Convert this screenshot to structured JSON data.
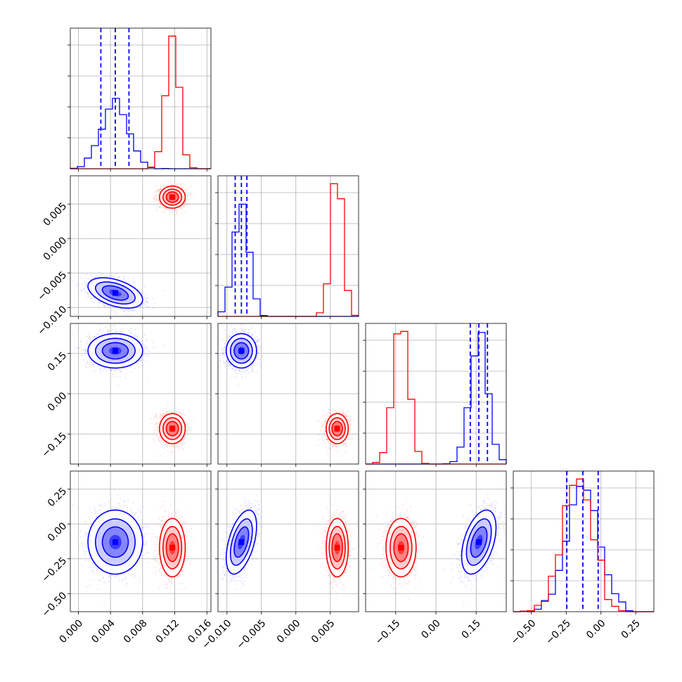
{
  "chart_data": {
    "type": "corner",
    "title": "",
    "grid": true,
    "colors": {
      "blue": "#0000ff",
      "red": "#ff0000"
    },
    "parameters": [
      {
        "range": [
          -0.001,
          0.0165
        ],
        "ticks": [
          "0.000",
          "0.004",
          "0.008",
          "0.012",
          "0.016"
        ],
        "tick_values": [
          0.0,
          0.004,
          0.008,
          0.012,
          0.016
        ]
      },
      {
        "range": [
          -0.0113,
          0.0091
        ],
        "ticks": [
          "−0.010",
          "−0.005",
          "0.000",
          "0.005"
        ],
        "tick_values": [
          -0.01,
          -0.005,
          0.0,
          0.005
        ]
      },
      {
        "range": [
          -0.262,
          0.262
        ],
        "ticks": [
          "−0.15",
          "0.00",
          "0.15"
        ],
        "tick_values": [
          -0.15,
          0.0,
          0.15
        ]
      },
      {
        "range": [
          -0.63,
          0.38
        ],
        "ticks": [
          "−0.50",
          "−0.25",
          "0.00",
          "0.25"
        ],
        "tick_values": [
          -0.5,
          -0.25,
          0.0,
          0.25
        ]
      }
    ],
    "series": [
      {
        "color": "blue",
        "means": [
          0.0046,
          -0.0079,
          0.16,
          -0.13
        ],
        "sds": [
          0.0017,
          0.0011,
          0.032,
          0.115
        ],
        "corr": [
          [
            1,
            -0.45,
            0,
            0
          ],
          [
            -0.45,
            1,
            0,
            0.5
          ],
          [
            0,
            0,
            1,
            0.45
          ],
          [
            0,
            0.5,
            0.45,
            1
          ]
        ],
        "quantiles": [
          [
            0.0028,
            0.0046,
            0.0063
          ],
          [
            -0.0088,
            -0.0079,
            -0.0071
          ],
          [
            0.128,
            0.16,
            0.192
          ],
          [
            -0.245,
            -0.13,
            -0.02
          ]
        ]
      },
      {
        "color": "red",
        "means": [
          0.0117,
          0.006,
          -0.13,
          -0.17
        ],
        "sds": [
          0.0008,
          0.0008,
          0.028,
          0.105
        ],
        "corr": [
          [
            1,
            0,
            0,
            0
          ],
          [
            0,
            1,
            0,
            0
          ],
          [
            0,
            0,
            1,
            0
          ],
          [
            0,
            0,
            0,
            1
          ]
        ]
      }
    ]
  }
}
